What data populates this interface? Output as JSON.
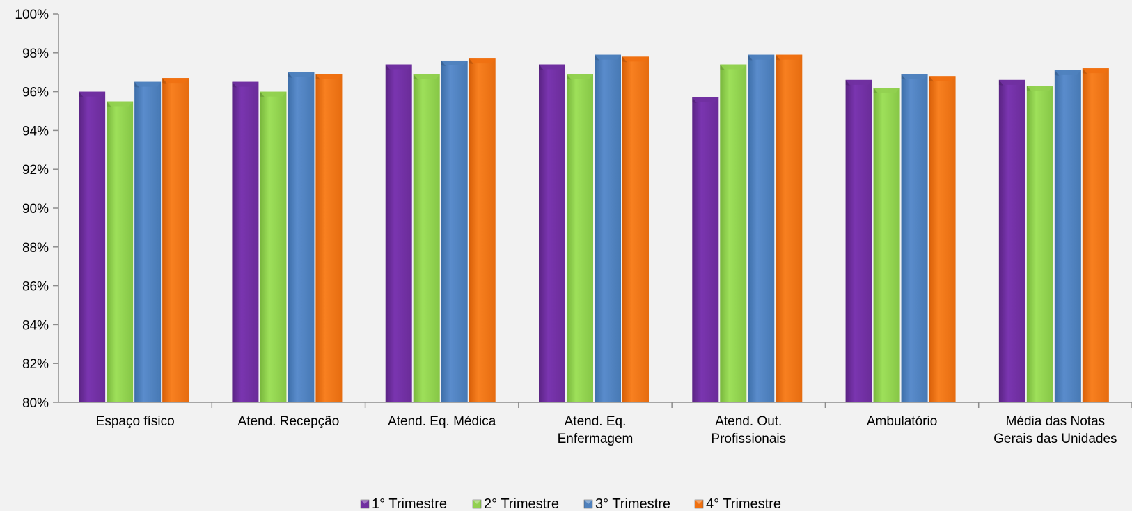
{
  "chart_data": {
    "type": "bar",
    "title": "",
    "xlabel": "",
    "ylabel": "",
    "ylim": [
      80,
      100
    ],
    "y_ticks": [
      "80%",
      "82%",
      "84%",
      "86%",
      "88%",
      "90%",
      "92%",
      "94%",
      "96%",
      "98%",
      "100%"
    ],
    "y_tick_values": [
      80,
      82,
      84,
      86,
      88,
      90,
      92,
      94,
      96,
      98,
      100
    ],
    "categories": [
      [
        "Espaço físico"
      ],
      [
        "Atend. Recepção"
      ],
      [
        "Atend. Eq. Médica"
      ],
      [
        "Atend. Eq.",
        "Enfermagem"
      ],
      [
        "Atend. Out.",
        "Profissionais"
      ],
      [
        "Ambulatório"
      ],
      [
        "Média das Notas",
        "Gerais das Unidades"
      ]
    ],
    "series": [
      {
        "name": "1° Trimestre",
        "color": "#7030a0",
        "values": [
          96.0,
          96.5,
          97.4,
          97.4,
          95.7,
          96.6,
          96.6
        ]
      },
      {
        "name": "2° Trimestre",
        "color": "#92d050",
        "values": [
          95.5,
          96.0,
          96.9,
          96.9,
          97.4,
          96.2,
          96.3
        ]
      },
      {
        "name": "3° Trimestre",
        "color": "#4f81bd",
        "values": [
          96.5,
          97.0,
          97.6,
          97.9,
          97.9,
          96.9,
          97.1
        ]
      },
      {
        "name": "4° Trimestre",
        "color": "#f07010",
        "values": [
          96.7,
          96.9,
          97.7,
          97.8,
          97.9,
          96.8,
          97.2
        ]
      }
    ],
    "grid": false,
    "legend_position": "bottom"
  }
}
